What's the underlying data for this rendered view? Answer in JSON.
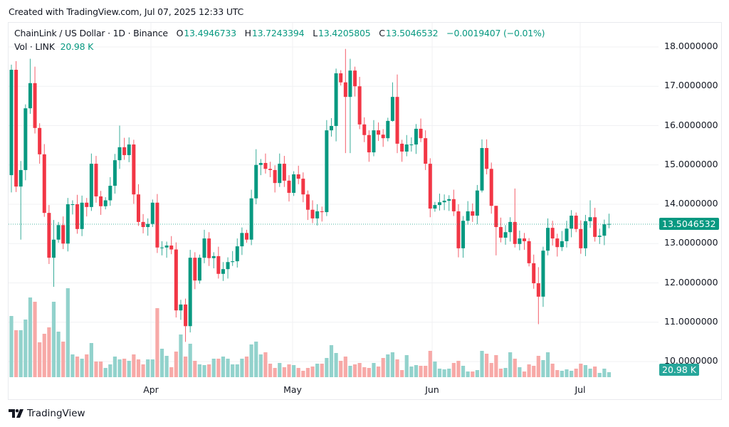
{
  "watermark": "Created with TradingView.com, Jul 07, 2025 12:33 UTC",
  "legend": {
    "symbol": "ChainLink / US Dollar · 1D · Binance",
    "open_label": "O",
    "open": "13.4946733",
    "high_label": "H",
    "high": "13.7243394",
    "low_label": "L",
    "low": "13.4205805",
    "close_label": "C",
    "close": "13.5046532",
    "change": "−0.0019407 (−0.01%)",
    "vol_label": "Vol · LINK",
    "vol": "20.98 K"
  },
  "price_axis": [
    "18.0000000",
    "17.0000000",
    "16.0000000",
    "15.0000000",
    "14.0000000",
    "13.0000000",
    "12.0000000",
    "11.0000000",
    "10.0000000"
  ],
  "time_axis": [
    "Apr",
    "May",
    "Jun",
    "Jul"
  ],
  "badges": {
    "price": "13.5046532",
    "volume": "20.98 K"
  },
  "logo_text": "TradingView",
  "colors": {
    "up": "#089981",
    "down": "#f23645",
    "vol_up": "#92d2cc",
    "vol_down": "#f7a9a7",
    "grid": "#f0f1f3",
    "price_line": "#089981"
  },
  "chart_data": {
    "type": "candlestick",
    "symbol": "LINK/USD",
    "interval": "1D",
    "first_open": 14.74,
    "close": [
      17.42,
      14.45,
      14.87,
      16.44,
      17.08,
      15.94,
      15.27,
      13.78,
      12.64,
      13.1,
      13.47,
      13.0,
      14.0,
      14.0,
      13.37,
      14.04,
      13.93,
      15.03,
      14.2,
      13.95,
      14.1,
      14.47,
      15.12,
      15.45,
      15.25,
      15.52,
      14.25,
      13.55,
      13.42,
      13.5,
      14.04,
      12.9,
      12.9,
      12.95,
      12.85,
      11.3,
      11.45,
      10.9,
      12.64,
      12.06,
      12.64,
      13.13,
      12.63,
      12.68,
      12.23,
      12.35,
      12.53,
      12.55,
      12.93,
      13.27,
      13.1,
      14.15,
      15.0,
      15.05,
      14.9,
      14.87,
      14.54,
      15.03,
      14.6,
      14.29,
      14.76,
      14.65,
      14.25,
      13.86,
      13.64,
      13.82,
      13.8,
      15.88,
      15.99,
      17.33,
      17.1,
      16.73,
      17.4,
      17.0,
      16.03,
      15.76,
      15.32,
      15.88,
      15.77,
      15.68,
      16.12,
      16.73,
      15.54,
      15.34,
      15.52,
      15.52,
      15.92,
      15.68,
      15.03,
      13.89,
      13.98,
      14.05,
      14.09,
      14.13,
      13.82,
      12.88,
      13.58,
      13.82,
      13.71,
      14.35,
      15.43,
      14.9,
      13.96,
      13.42,
      13.15,
      13.29,
      13.55,
      12.99,
      13.13,
      13.06,
      12.5,
      11.99,
      11.65,
      12.82,
      13.4,
      13.13,
      12.91,
      13.06,
      13.38,
      13.71,
      13.37,
      12.88,
      13.57,
      13.67,
      13.17,
      13.2,
      13.49,
      13.5
    ],
    "wick_overrides": {
      "0": [
        17.55,
        14.3
      ],
      "2": [
        15.1,
        13.1
      ],
      "4": [
        17.7,
        16.3
      ],
      "5": [
        17.5,
        15.8
      ],
      "9": [
        13.6,
        11.9
      ],
      "23": [
        16.0,
        14.9
      ],
      "37": [
        11.6,
        10.5
      ],
      "52": [
        15.4,
        14.0
      ],
      "69": [
        17.45,
        15.6
      ],
      "71": [
        17.95,
        15.3
      ],
      "72": [
        17.7,
        15.3
      ],
      "81": [
        17.1,
        16.1
      ],
      "82": [
        17.3,
        15.3
      ],
      "95": [
        14.0,
        12.65
      ],
      "100": [
        15.65,
        14.3
      ],
      "103": [
        13.9,
        12.7
      ],
      "107": [
        14.4,
        12.9
      ],
      "112": [
        12.4,
        10.95
      ],
      "123": [
        14.1,
        13.4
      ]
    },
    "volume_k": [
      258,
      198,
      198,
      243,
      336,
      318,
      147,
      183,
      210,
      318,
      192,
      150,
      375,
      96,
      87,
      78,
      96,
      144,
      66,
      66,
      39,
      54,
      87,
      75,
      78,
      69,
      96,
      75,
      54,
      75,
      75,
      291,
      120,
      90,
      42,
      108,
      180,
      87,
      141,
      69,
      54,
      51,
      54,
      78,
      78,
      87,
      78,
      54,
      54,
      78,
      87,
      138,
      150,
      96,
      105,
      57,
      39,
      60,
      42,
      54,
      51,
      39,
      27,
      39,
      45,
      57,
      57,
      81,
      135,
      102,
      69,
      87,
      48,
      54,
      60,
      42,
      39,
      60,
      45,
      81,
      96,
      105,
      75,
      30,
      93,
      45,
      51,
      48,
      48,
      111,
      66,
      36,
      33,
      36,
      60,
      69,
      48,
      24,
      24,
      30,
      111,
      99,
      60,
      93,
      36,
      39,
      105,
      78,
      42,
      24,
      54,
      48,
      90,
      72,
      105,
      57,
      30,
      27,
      33,
      27,
      36,
      57,
      51,
      36,
      45,
      18,
      36,
      21
    ],
    "ylim": [
      9.6,
      18.6
    ],
    "x_ticks": [
      "Apr",
      "May",
      "Jun",
      "Jul"
    ],
    "last_price": 13.5046532,
    "last_volume": "20.98K"
  }
}
